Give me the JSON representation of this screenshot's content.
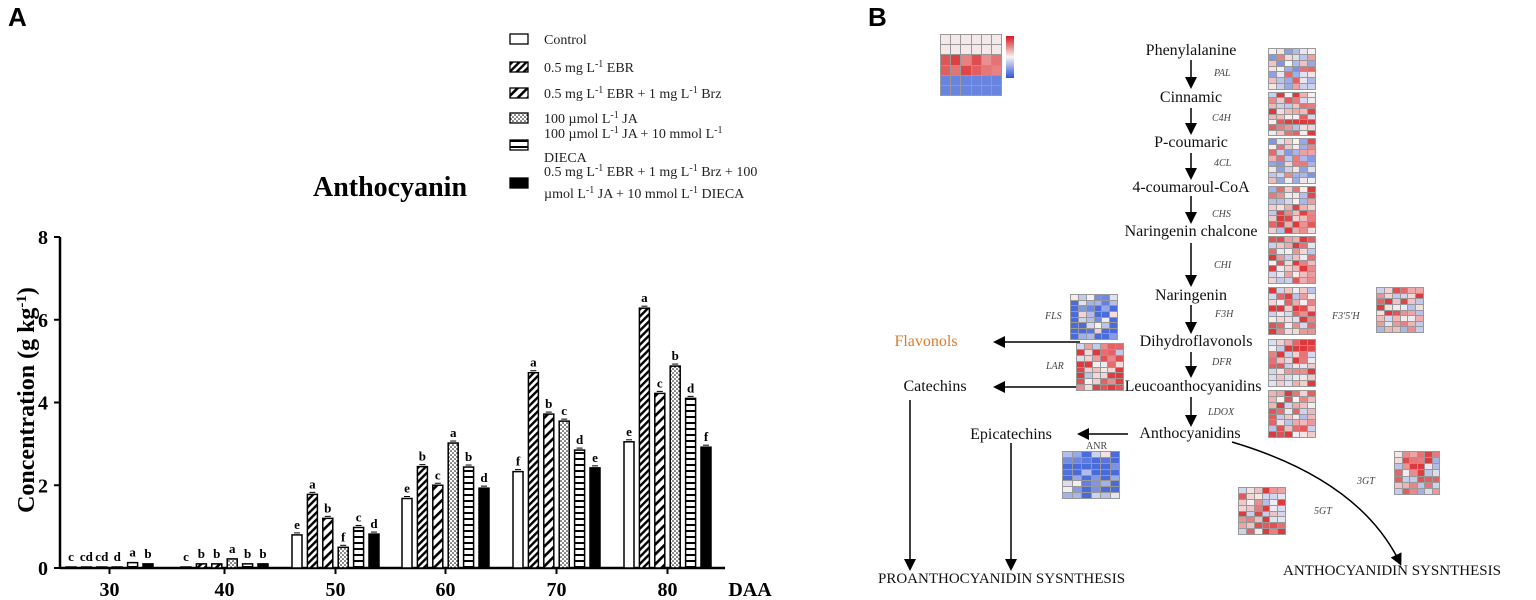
{
  "panel_a": {
    "label": "A",
    "chart_data": {
      "type": "bar",
      "title": "Anthocyanin",
      "ylabel": "Concentration (g kg-1)",
      "ylabel_base": "Concentration (g kg",
      "ylabel_sup": "-1",
      "ylabel_close": ")",
      "xlabel": "DAA",
      "ylim": [
        0,
        8
      ],
      "yticks": [
        "0",
        "2",
        "4",
        "6",
        "8"
      ],
      "categories": [
        "30",
        "40",
        "50",
        "60",
        "70",
        "80"
      ],
      "series": [
        {
          "name": "Control",
          "pattern": "empty",
          "values": [
            0.02,
            0.02,
            0.8,
            1.68,
            2.33,
            3.05
          ],
          "letters": [
            "c",
            "c",
            "e",
            "e",
            "f",
            "e"
          ]
        },
        {
          "name": "0.5 mg L-1 EBR",
          "pattern": "dense-diag",
          "values": [
            0.02,
            0.1,
            1.78,
            2.45,
            4.72,
            6.28
          ],
          "letters": [
            "cd",
            "b",
            "a",
            "b",
            "a",
            "a"
          ]
        },
        {
          "name": "0.5 mg L-1 EBR + 1 mg L-1 Brz",
          "pattern": "diag",
          "values": [
            0.02,
            0.1,
            1.2,
            2.0,
            3.72,
            4.22
          ],
          "letters": [
            "cd",
            "b",
            "b",
            "c",
            "b",
            "c"
          ]
        },
        {
          "name": "100 µmol L-1 JA",
          "pattern": "dots",
          "values": [
            0.02,
            0.22,
            0.5,
            3.02,
            3.55,
            4.88
          ],
          "letters": [
            "d",
            "a",
            "f",
            "a",
            "c",
            "b"
          ]
        },
        {
          "name": "100 µmol L-1 JA + 10 mmol L-1 DIECA",
          "pattern": "hlines",
          "values": [
            0.13,
            0.1,
            0.98,
            2.44,
            2.85,
            4.1
          ],
          "letters": [
            "a",
            "b",
            "c",
            "b",
            "d",
            "d"
          ]
        },
        {
          "name": "0.5 mg L-1 EBR + 1 mg L-1 Brz + 100 µmol L-1 JA + 10 mmol L-1 DIECA",
          "pattern": "solid",
          "values": [
            0.1,
            0.1,
            0.82,
            1.93,
            2.42,
            2.92
          ],
          "letters": [
            "b",
            "b",
            "d",
            "d",
            "e",
            "f"
          ]
        }
      ],
      "legend": [
        {
          "parts": [
            [
              "Control",
              ""
            ]
          ]
        },
        {
          "parts": [
            [
              "0.5 mg L",
              ""
            ],
            [
              "-1",
              "sup"
            ],
            [
              " EBR",
              ""
            ]
          ]
        },
        {
          "parts": [
            [
              "0.5 mg L",
              ""
            ],
            [
              "-1",
              "sup"
            ],
            [
              " EBR + 1 mg L",
              ""
            ],
            [
              "-1",
              "sup"
            ],
            [
              " Brz",
              ""
            ]
          ]
        },
        {
          "parts": [
            [
              "100 µmol L",
              ""
            ],
            [
              "-1",
              "sup"
            ],
            [
              " JA",
              ""
            ]
          ]
        },
        {
          "parts": [
            [
              "100 µmol L",
              ""
            ],
            [
              "-1",
              "sup"
            ],
            [
              " JA + 10 mmol L",
              ""
            ],
            [
              "-1",
              "sup"
            ]
          ],
          "line2": "DIECA"
        },
        {
          "parts": [
            [
              "0.5 mg L",
              ""
            ],
            [
              "-1",
              "sup"
            ],
            [
              " EBR + 1 mg L",
              ""
            ],
            [
              "-1",
              "sup"
            ],
            [
              " Brz + 100",
              ""
            ]
          ],
          "line2_parts": [
            [
              "µmol L",
              ""
            ],
            [
              "-1",
              "sup"
            ],
            [
              " JA + 10 mmol L",
              ""
            ],
            [
              "-1",
              "sup"
            ],
            [
              " DIECA",
              ""
            ]
          ]
        }
      ],
      "legend_placement": "top-right"
    }
  },
  "panel_b": {
    "label": "B",
    "nodes": {
      "phenylalanine": "Phenylalanine",
      "cinnamic": "Cinnamic",
      "pcoumaric": "P-coumaric",
      "coumaroyl": "4-coumaroul-CoA",
      "chalcone": "Naringenin chalcone",
      "naringenin": "Naringenin",
      "dihydro": "Dihydroflavonols",
      "leuco": "Leucoanthocyanidins",
      "antho": "Anthocyanidins",
      "flavonols": "Flavonols",
      "catechins": "Catechins",
      "epicatechins": "Epicatechins"
    },
    "genes": {
      "pal": "PAL",
      "c4h": "C4H",
      "cl4": "4CL",
      "chs": "CHS",
      "chi": "CHI",
      "f3h": "F3H",
      "f3h5": "F3'5'H",
      "dfr": "DFR",
      "ldox": "LDOX",
      "fls": "FLS",
      "lar": "LAR",
      "anr": "ANR",
      "gt3": "3GT",
      "gt5": "5GT"
    },
    "ends": {
      "proantho": "PROANTHOCYANIDIN SYSNTHESIS",
      "antho_syn": "ANTHOCYANIDIN SYSNTHESIS"
    },
    "flavonols_color": "#e07b2a"
  },
  "colors": {
    "bar_stroke": "#000000",
    "solid": "#000000",
    "heat_high": "#d7191c",
    "heat_low": "#2c54d6",
    "heat_mid": "#f7f3f3"
  }
}
